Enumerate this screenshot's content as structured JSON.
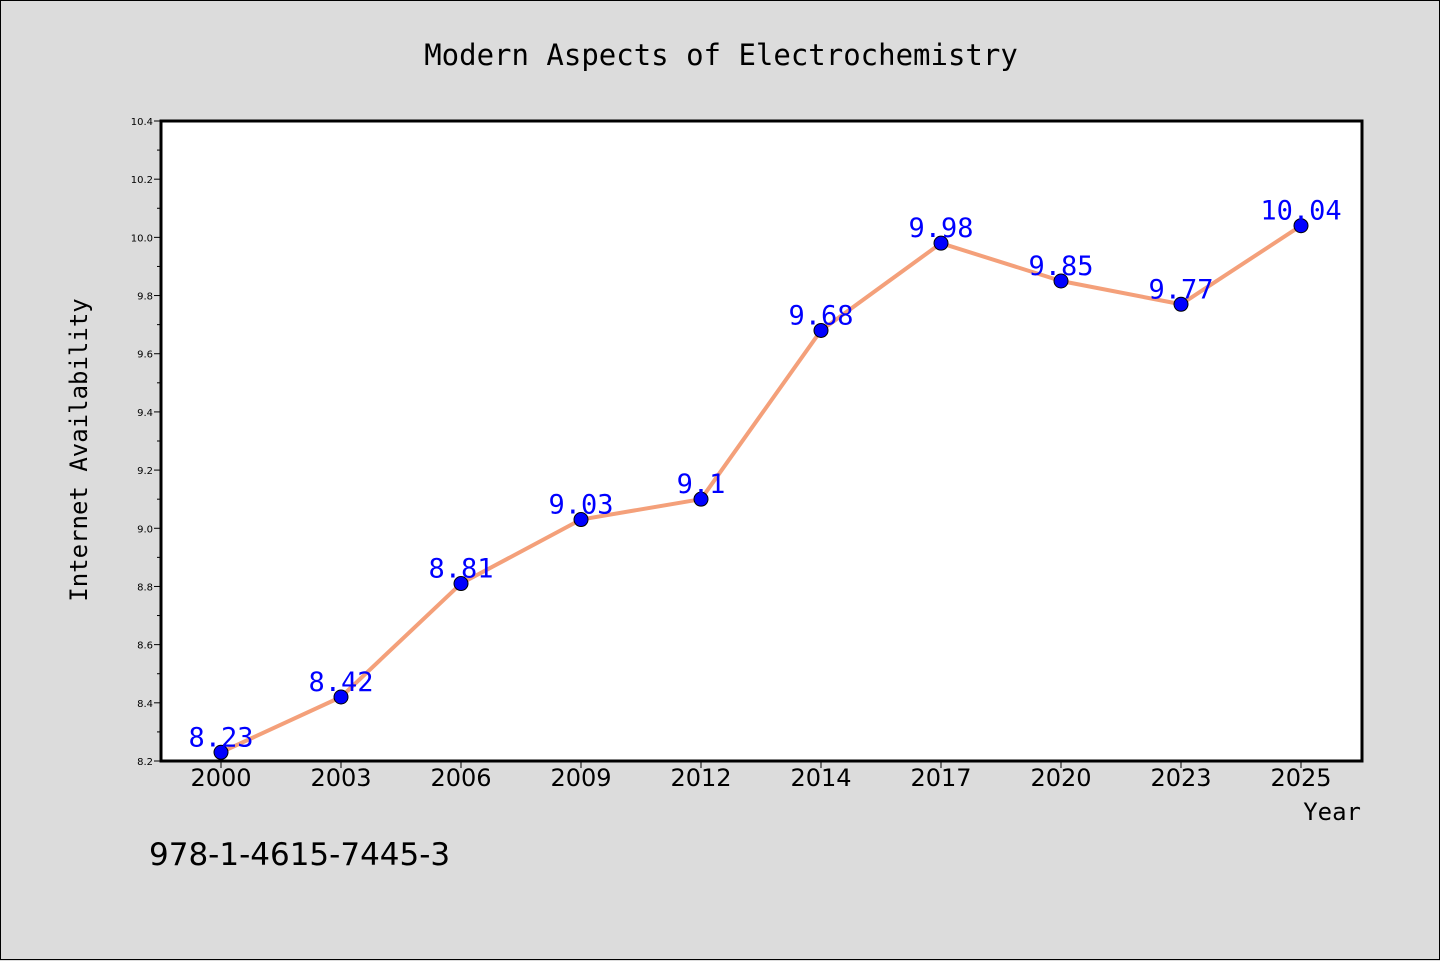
{
  "chart_data": {
    "type": "line",
    "title": "Modern Aspects of Electrochemistry",
    "xlabel": "Year",
    "ylabel": "Internet Availability",
    "categories": [
      "2000",
      "2003",
      "2006",
      "2009",
      "2012",
      "2014",
      "2017",
      "2020",
      "2023",
      "2025"
    ],
    "series": [
      {
        "values": [
          8.23,
          8.42,
          8.81,
          9.03,
          9.1,
          9.68,
          9.98,
          9.85,
          9.77,
          10.04
        ],
        "data_labels": [
          "8.23",
          "8.42",
          "8.81",
          "9.03",
          "9.1",
          "9.68",
          "9.98",
          "9.85",
          "9.77",
          "10.04"
        ],
        "line_color": "#f4a07a",
        "marker_color": "#0000ff"
      }
    ],
    "ylim": [
      8.2,
      10.4
    ],
    "yticks": [
      "8.2",
      "8.4",
      "8.6",
      "8.8",
      "9.0",
      "9.2",
      "9.4",
      "9.6",
      "9.8",
      "10.0",
      "10.2",
      "10.4"
    ],
    "grid": false,
    "legend": "none"
  },
  "footer": {
    "isbn": "978-1-4615-7445-3"
  },
  "colors": {
    "background": "#dcdcdc",
    "plot_background": "#ffffff",
    "line": "#f4a07a",
    "marker": "#0000ff",
    "data_label": "#0000ff"
  }
}
